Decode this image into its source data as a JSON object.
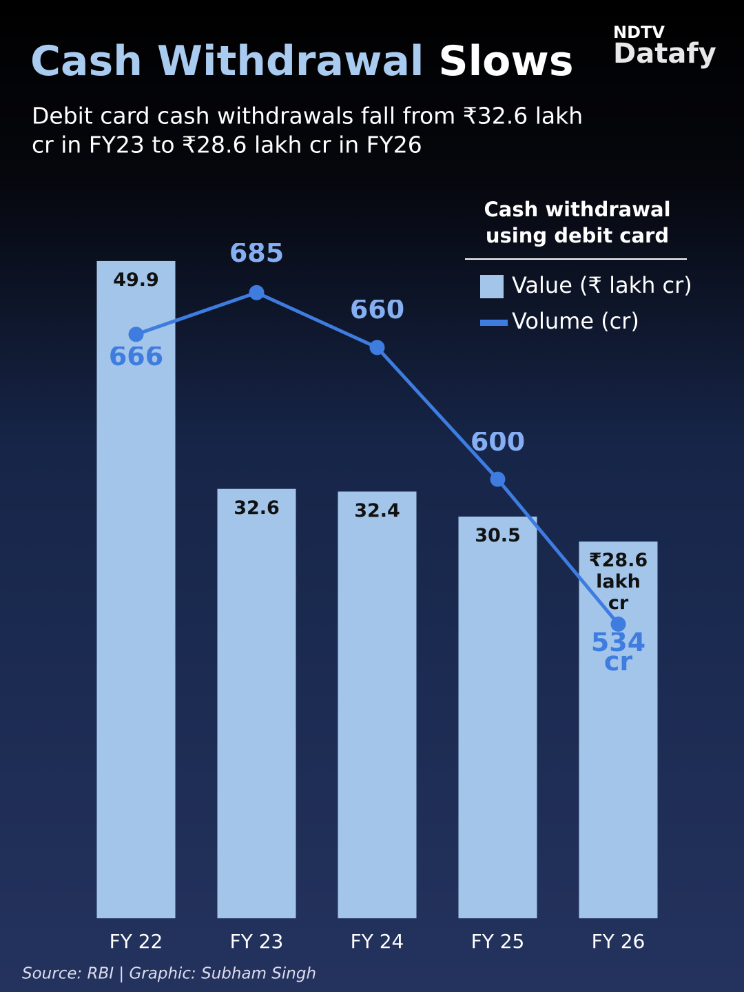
{
  "chart_data": {
    "type": "bar-line",
    "brand": [
      "NDTV",
      "Datafy"
    ],
    "title": [
      "Cash Withdrawal",
      "Slows"
    ],
    "subtitle": [
      "Debit card cash withdrawals fall from ₹32.6 lakh",
      "cr in FY23 to ₹28.6 lakh cr in FY26"
    ],
    "legend_title": [
      "Cash withdrawal",
      "using debit card"
    ],
    "categories": [
      "FY 22",
      "FY 23",
      "FY 24",
      "FY 25",
      "FY 26"
    ],
    "series": [
      {
        "name": "Value (₹ lakh cr)",
        "color": "#a2c5e9",
        "type": "bar",
        "values": [
          49.9,
          32.6,
          32.4,
          30.5,
          28.6
        ],
        "value_labels": [
          "49.9",
          "32.6",
          "32.4",
          "30.5",
          "₹28.6 lakh cr"
        ]
      },
      {
        "name": "Volume (cr)",
        "color": "#3f7ce0",
        "type": "line",
        "axis": "y2",
        "values": [
          666,
          685,
          660,
          600,
          534
        ],
        "value_labels": [
          "666",
          "685",
          "660",
          "600",
          "534 cr"
        ]
      }
    ],
    "ylim": [
      0,
      50
    ],
    "y2lim": [
      400,
      700
    ],
    "source": "Source: RBI | Graphic: Subham Singh"
  }
}
